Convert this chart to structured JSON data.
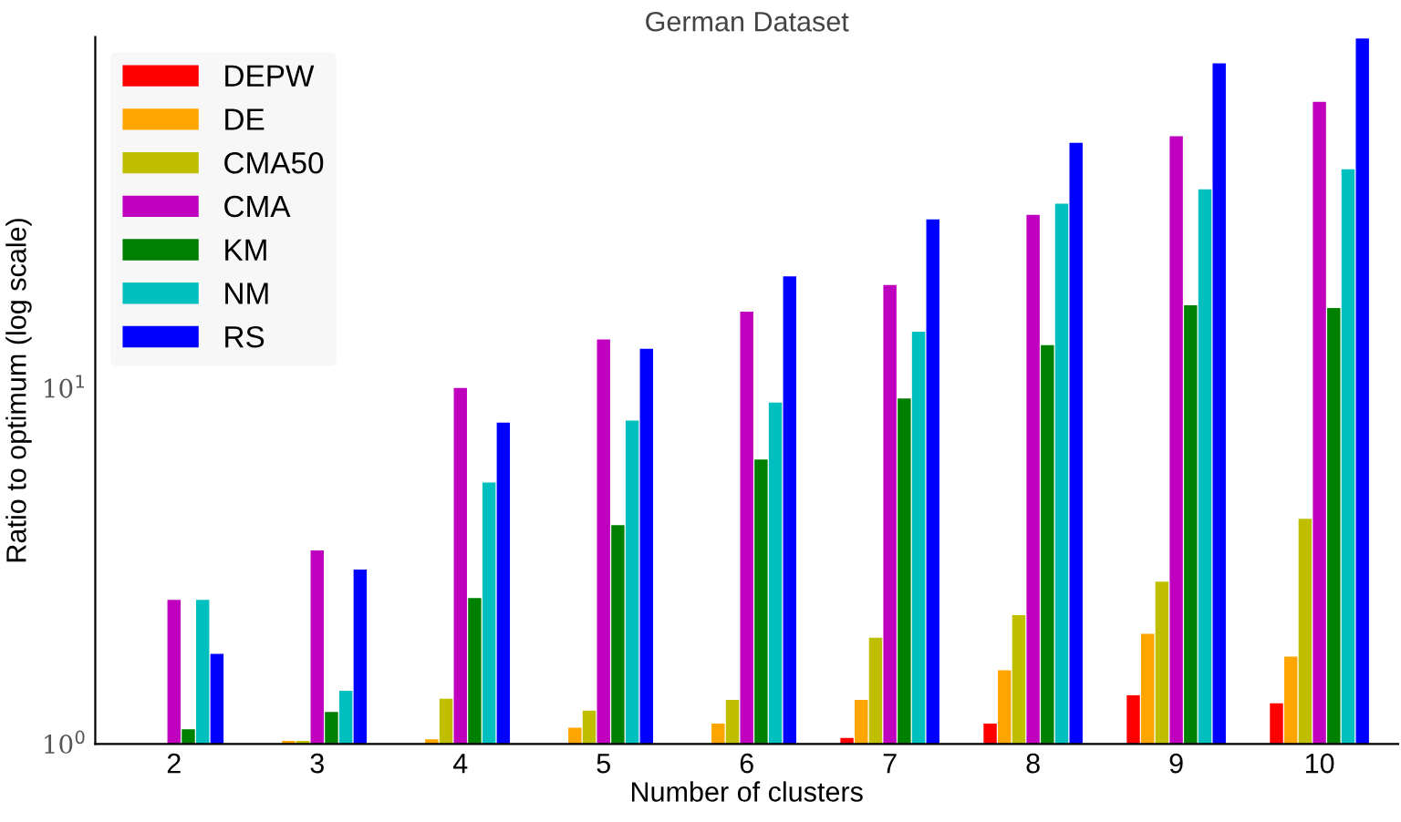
{
  "chart_data": {
    "type": "bar",
    "title": "German Dataset",
    "xlabel": "Number of clusters",
    "ylabel": "Ratio to optimum (log scale)",
    "categories": [
      "2",
      "3",
      "4",
      "5",
      "6",
      "7",
      "8",
      "9",
      "10"
    ],
    "series": [
      {
        "name": "DEPW",
        "color": "#ff0000",
        "values": [
          null,
          null,
          null,
          null,
          null,
          1.04,
          1.14,
          1.37,
          1.3
        ]
      },
      {
        "name": "DE",
        "color": "#ffa500",
        "values": [
          null,
          1.02,
          1.03,
          1.11,
          1.14,
          1.33,
          1.61,
          2.04,
          1.76
        ]
      },
      {
        "name": "CMA50",
        "color": "#bfbf00",
        "values": [
          null,
          1.02,
          1.34,
          1.24,
          1.33,
          1.99,
          2.3,
          2.86,
          4.29
        ]
      },
      {
        "name": "CMA",
        "color": "#bf00bf",
        "values": [
          2.54,
          3.5,
          10.0,
          13.7,
          16.4,
          19.5,
          30.7,
          51.0,
          63.8
        ]
      },
      {
        "name": "KM",
        "color": "#008000",
        "values": [
          1.1,
          1.23,
          2.57,
          4.12,
          6.3,
          9.35,
          13.2,
          17.1,
          16.8
        ]
      },
      {
        "name": "NM",
        "color": "#00bfbf",
        "values": [
          2.54,
          1.41,
          5.43,
          8.1,
          9.1,
          14.4,
          33.0,
          36.2,
          41.2
        ]
      },
      {
        "name": "RS",
        "color": "#0000ff",
        "values": [
          1.79,
          3.09,
          8.0,
          12.9,
          20.6,
          29.8,
          48.9,
          81.8,
          96
        ]
      }
    ],
    "log": "y",
    "ylim": [
      1,
      97
    ],
    "yticks": [
      {
        "value": 1,
        "label": "10$^{0}$"
      },
      {
        "value": 10,
        "label": "10$^{1}$"
      }
    ],
    "grid": false,
    "legend": "top left"
  }
}
